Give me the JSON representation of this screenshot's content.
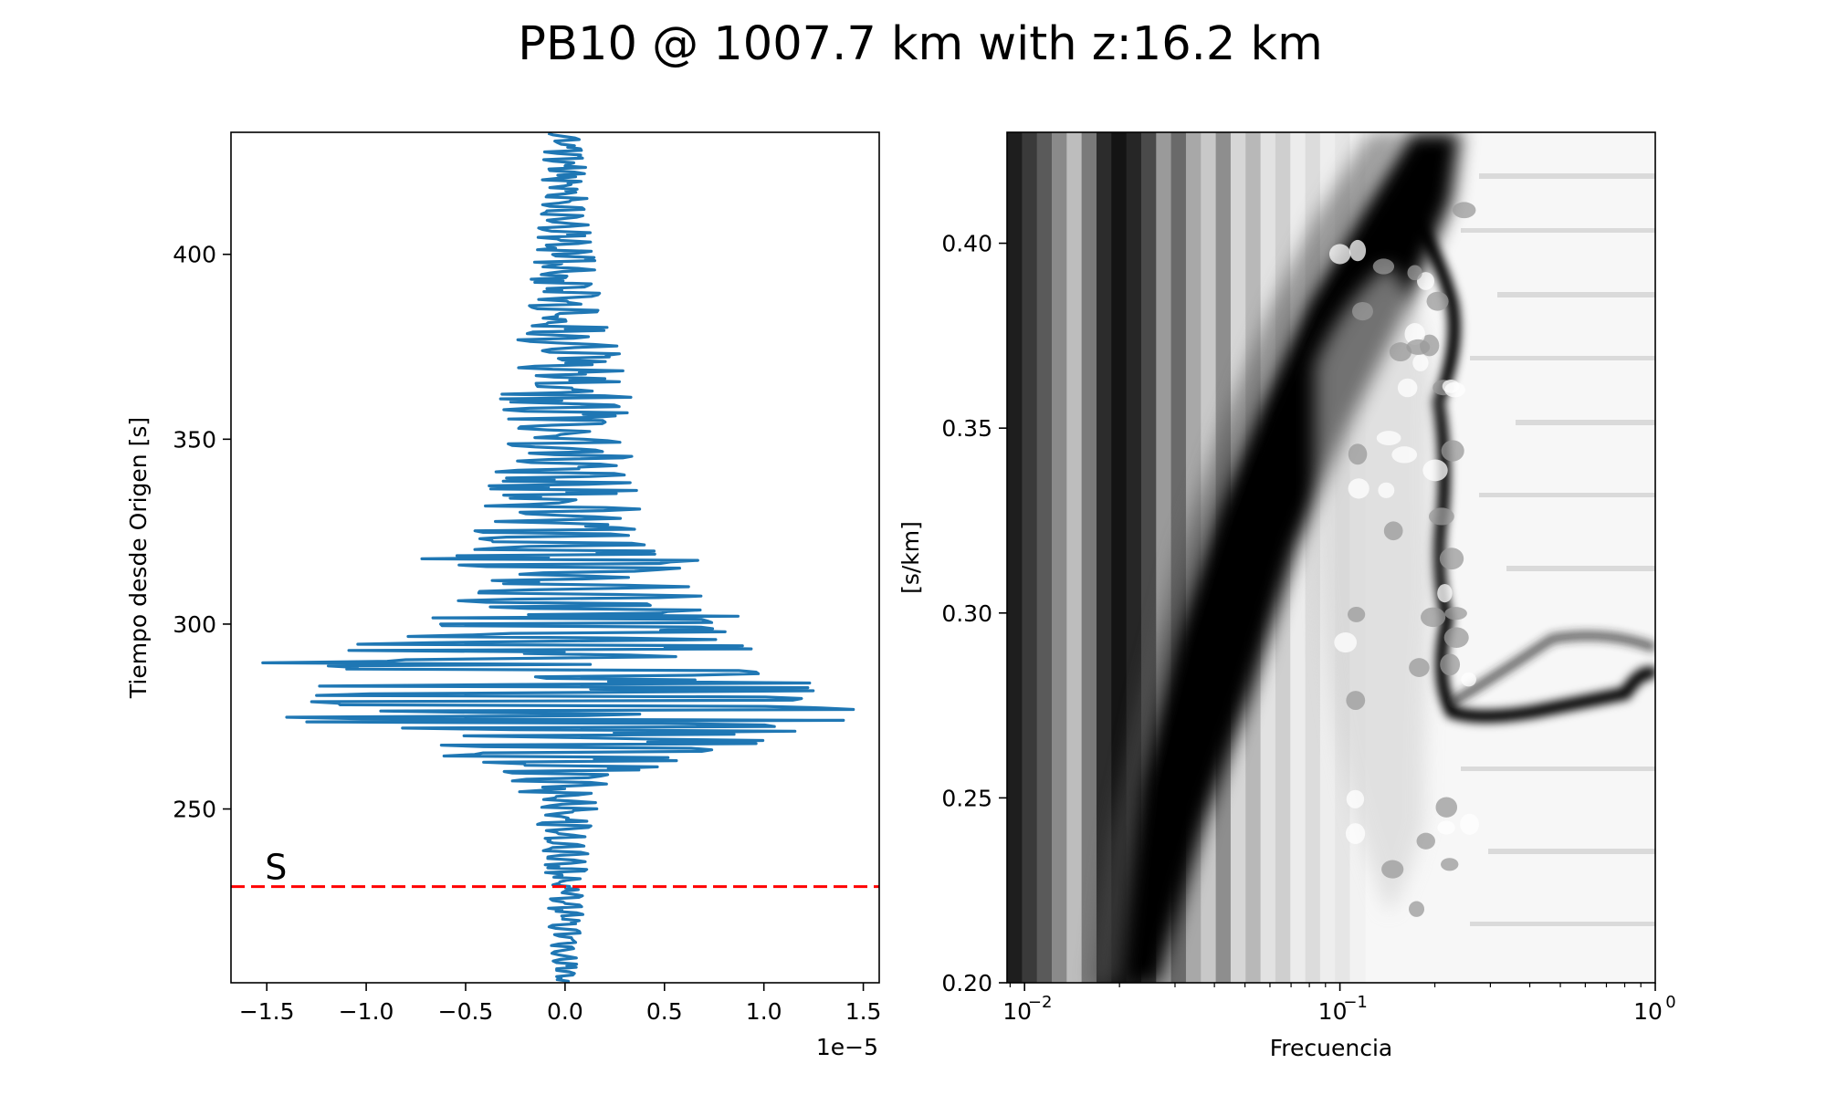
{
  "figure": {
    "title": "PB10 @ 1007.7 km with z:16.2 km"
  },
  "chart_data": [
    {
      "type": "line",
      "panel": "left",
      "description": "seismogram trace (vertical time axis)",
      "ylabel": "Tiempo desde Origen [s]",
      "xlabel": "",
      "x_offset_text": "1e−5",
      "xlim": [
        -1.68,
        1.58
      ],
      "ylim": [
        203,
        433
      ],
      "x_scale": 1e-05,
      "xticks": [
        -1.5,
        -1.0,
        -0.5,
        0.0,
        0.5,
        1.0,
        1.5
      ],
      "xtick_labels": [
        "−1.5",
        "−1.0",
        "−0.5",
        "0.0",
        "0.5",
        "1.0",
        "1.5"
      ],
      "yticks": [
        250,
        300,
        350,
        400
      ],
      "ytick_labels": [
        "250",
        "300",
        "350",
        "400"
      ],
      "line_color": "#1f77b4",
      "envelope": {
        "t": [
          203,
          215,
          228,
          240,
          250,
          258,
          265,
          268,
          272,
          275,
          278,
          282,
          286,
          290,
          295,
          300,
          305,
          310,
          316,
          320,
          326,
          333,
          340,
          350,
          360,
          370,
          380,
          390,
          400,
          410,
          420,
          433
        ],
        "amp": [
          0.05,
          0.08,
          0.1,
          0.12,
          0.16,
          0.28,
          0.7,
          1.1,
          1.25,
          1.45,
          1.4,
          1.3,
          1.25,
          1.55,
          1.0,
          0.85,
          0.75,
          0.7,
          0.75,
          0.55,
          0.45,
          0.4,
          0.38,
          0.3,
          0.35,
          0.32,
          0.22,
          0.18,
          0.16,
          0.13,
          0.12,
          0.1
        ]
      },
      "peak_excursions": [
        {
          "t": 277,
          "value": 1.45
        },
        {
          "t": 274,
          "value": 1.4
        },
        {
          "t": 289.5,
          "value": -1.52
        },
        {
          "t": 275,
          "value": -1.4
        },
        {
          "t": 280.5,
          "value": -1.25
        },
        {
          "t": 284,
          "value": 1.23
        },
        {
          "t": 302,
          "value": 0.87
        },
        {
          "t": 317,
          "value": 0.53
        },
        {
          "t": 317.5,
          "value": -0.72
        }
      ],
      "markers": [
        {
          "label": "S",
          "t": 229,
          "color": "#ff0000",
          "style": "dashed"
        }
      ]
    },
    {
      "type": "heatmap",
      "panel": "right",
      "description": "grayscale slowness vs frequency image",
      "xlabel": "Frecuencia",
      "ylabel": "[s/km]",
      "x_scale": "log",
      "xlim": [
        0.0088,
        1.0
      ],
      "ylim": [
        0.2,
        0.43
      ],
      "xtick_labels": [
        {
          "value": 0.01,
          "base": "10",
          "exp": "−2"
        },
        {
          "value": 0.1,
          "base": "10",
          "exp": "−1"
        },
        {
          "value": 1.0,
          "base": "10",
          "exp": "0"
        }
      ],
      "yticks": [
        0.2,
        0.25,
        0.3,
        0.35,
        0.4
      ],
      "ytick_labels": [
        "0.20",
        "0.25",
        "0.30",
        "0.35",
        "0.40"
      ],
      "colormap": "gray_r",
      "features": [
        {
          "name": "dark dispersion ridge",
          "points": [
            [
              0.022,
              0.2
            ],
            [
              0.03,
              0.26
            ],
            [
              0.05,
              0.32
            ],
            [
              0.08,
              0.36
            ],
            [
              0.13,
              0.39
            ],
            [
              0.2,
              0.42
            ]
          ]
        },
        {
          "name": "dark ridge wall",
          "points": [
            [
              0.2,
              0.4
            ],
            [
              0.24,
              0.37
            ],
            [
              0.23,
              0.33
            ],
            [
              0.22,
              0.3
            ],
            [
              0.24,
              0.275
            ],
            [
              0.4,
              0.27
            ],
            [
              0.7,
              0.28
            ],
            [
              1.0,
              0.29
            ]
          ]
        }
      ]
    }
  ]
}
